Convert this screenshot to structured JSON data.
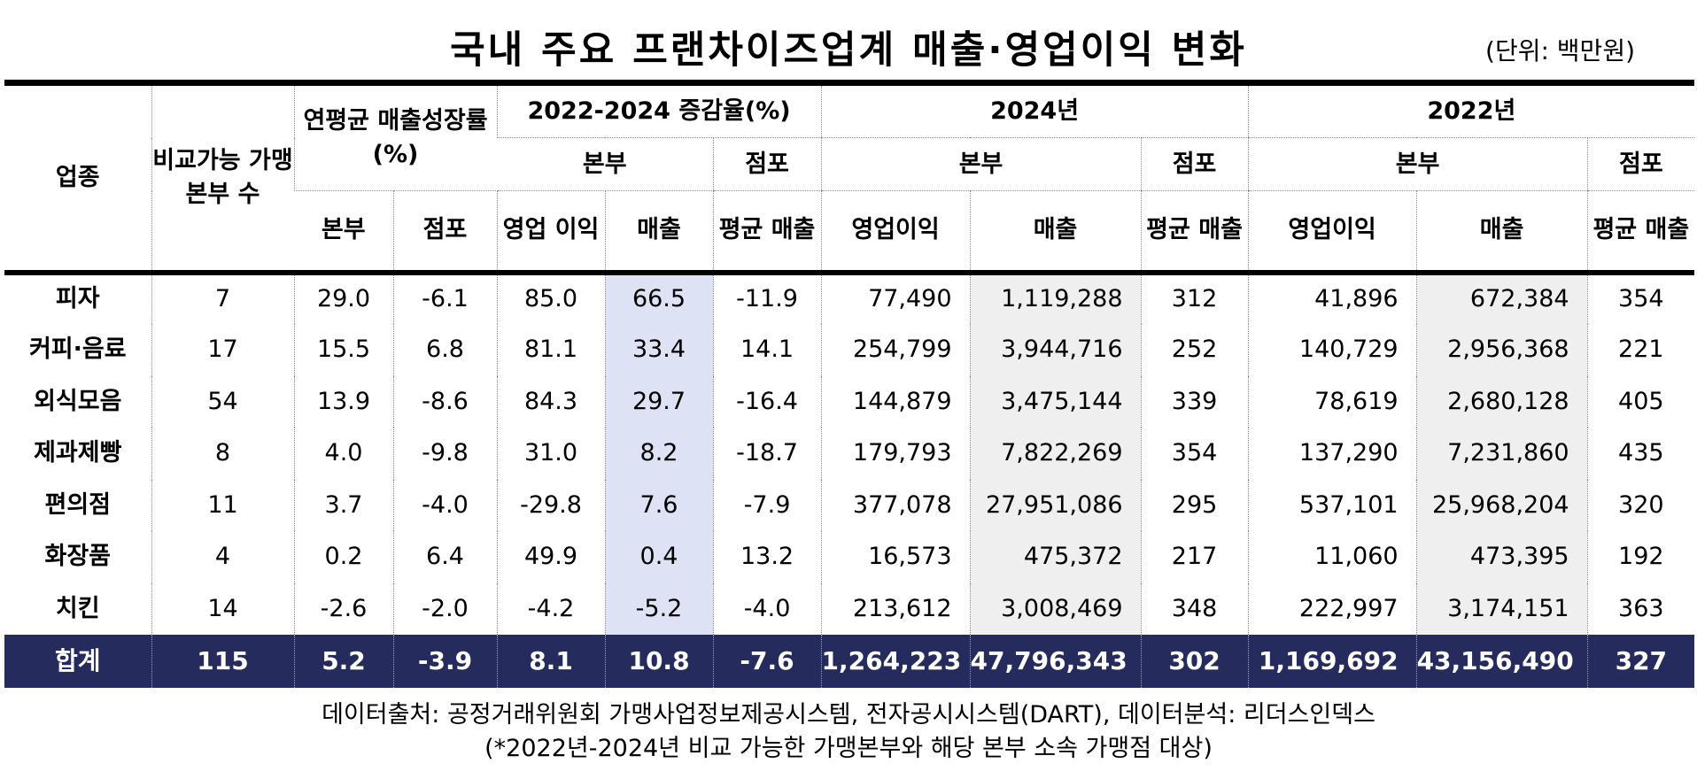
{
  "title": "국내 주요 프랜차이즈업계 매출·영업이익 변화",
  "unit": "(단위: 백만원)",
  "headers": {
    "industry": "업종",
    "comparable_hq": "비교가능 가맹본부 수",
    "cagr": "연평균 매출성장률(%)",
    "change_2224": "2022-2024 증감율(%)",
    "y2024": "2024년",
    "y2022": "2022년",
    "hq": "본부",
    "store": "점포",
    "op_income_short": "영업 이익",
    "op_income": "영업이익",
    "sales": "매출",
    "avg_sales": "평균 매출"
  },
  "rows": [
    {
      "name": "피자",
      "hq_count": "7",
      "cagr_hq": "29.0",
      "cagr_store": "-6.1",
      "chg_op": "85.0",
      "chg_sales": "66.5",
      "chg_avg": "-11.9",
      "op24": "77,490",
      "sales24": "1,119,288",
      "avg24": "312",
      "op22": "41,896",
      "sales22": "672,384",
      "avg22": "354"
    },
    {
      "name": "커피·음료",
      "hq_count": "17",
      "cagr_hq": "15.5",
      "cagr_store": "6.8",
      "chg_op": "81.1",
      "chg_sales": "33.4",
      "chg_avg": "14.1",
      "op24": "254,799",
      "sales24": "3,944,716",
      "avg24": "252",
      "op22": "140,729",
      "sales22": "2,956,368",
      "avg22": "221"
    },
    {
      "name": "외식모음",
      "hq_count": "54",
      "cagr_hq": "13.9",
      "cagr_store": "-8.6",
      "chg_op": "84.3",
      "chg_sales": "29.7",
      "chg_avg": "-16.4",
      "op24": "144,879",
      "sales24": "3,475,144",
      "avg24": "339",
      "op22": "78,619",
      "sales22": "2,680,128",
      "avg22": "405"
    },
    {
      "name": "제과제빵",
      "hq_count": "8",
      "cagr_hq": "4.0",
      "cagr_store": "-9.8",
      "chg_op": "31.0",
      "chg_sales": "8.2",
      "chg_avg": "-18.7",
      "op24": "179,793",
      "sales24": "7,822,269",
      "avg24": "354",
      "op22": "137,290",
      "sales22": "7,231,860",
      "avg22": "435"
    },
    {
      "name": "편의점",
      "hq_count": "11",
      "cagr_hq": "3.7",
      "cagr_store": "-4.0",
      "chg_op": "-29.8",
      "chg_sales": "7.6",
      "chg_avg": "-7.9",
      "op24": "377,078",
      "sales24": "27,951,086",
      "avg24": "295",
      "op22": "537,101",
      "sales22": "25,968,204",
      "avg22": "320"
    },
    {
      "name": "화장품",
      "hq_count": "4",
      "cagr_hq": "0.2",
      "cagr_store": "6.4",
      "chg_op": "49.9",
      "chg_sales": "0.4",
      "chg_avg": "13.2",
      "op24": "16,573",
      "sales24": "475,372",
      "avg24": "217",
      "op22": "11,060",
      "sales22": "473,395",
      "avg22": "192"
    },
    {
      "name": "치킨",
      "hq_count": "14",
      "cagr_hq": "-2.6",
      "cagr_store": "-2.0",
      "chg_op": "-4.2",
      "chg_sales": "-5.2",
      "chg_avg": "-4.0",
      "op24": "213,612",
      "sales24": "3,008,469",
      "avg24": "348",
      "op22": "222,997",
      "sales22": "3,174,151",
      "avg22": "363"
    }
  ],
  "total": {
    "name": "합계",
    "hq_count": "115",
    "cagr_hq": "5.2",
    "cagr_store": "-3.9",
    "chg_op": "8.1",
    "chg_sales": "10.8",
    "chg_avg": "-7.6",
    "op24": "1,264,223",
    "sales24": "47,796,343",
    "avg24": "302",
    "op22": "1,169,692",
    "sales22": "43,156,490",
    "avg22": "327"
  },
  "footnotes": {
    "source": "데이터출처: 공정거래위원회 가맹사업정보제공시스템, 전자공시시스템(DART), 데이터분석: 리더스인덱스",
    "note": "(*2022년-2024년 비교 가능한 가맹본부와 해당 본부 소속 가맹점 대상)"
  },
  "colors": {
    "highlight_blue": "#dde3f5",
    "highlight_gray": "#efefef",
    "total_bg": "#252b5c"
  }
}
